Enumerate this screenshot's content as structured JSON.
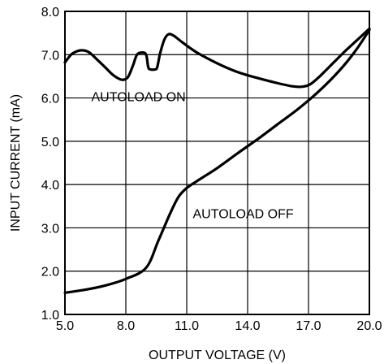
{
  "chart_data": {
    "type": "line",
    "title": "",
    "xlabel": "OUTPUT VOLTAGE (V)",
    "ylabel": "INPUT CURRENT (mA)",
    "xlim": [
      5.0,
      20.0
    ],
    "ylim": [
      1.0,
      8.0
    ],
    "x_ticks": [
      "5.0",
      "8.0",
      "11.0",
      "14.0",
      "17.0",
      "20.0"
    ],
    "y_ticks": [
      "1.0",
      "2.0",
      "3.0",
      "4.0",
      "5.0",
      "6.0",
      "7.0",
      "8.0"
    ],
    "grid": true,
    "series": [
      {
        "name": "AUTOLOAD ON",
        "points": [
          [
            5.0,
            6.82
          ],
          [
            5.3,
            7.0
          ],
          [
            5.6,
            7.08
          ],
          [
            5.9,
            7.1
          ],
          [
            6.2,
            7.05
          ],
          [
            6.6,
            6.88
          ],
          [
            7.0,
            6.7
          ],
          [
            7.4,
            6.52
          ],
          [
            7.8,
            6.42
          ],
          [
            8.1,
            6.48
          ],
          [
            8.35,
            6.75
          ],
          [
            8.55,
            7.0
          ],
          [
            8.8,
            7.05
          ],
          [
            9.0,
            7.0
          ],
          [
            9.1,
            6.72
          ],
          [
            9.2,
            6.66
          ],
          [
            9.45,
            6.66
          ],
          [
            9.55,
            6.72
          ],
          [
            9.7,
            7.05
          ],
          [
            9.9,
            7.35
          ],
          [
            10.1,
            7.47
          ],
          [
            10.35,
            7.44
          ],
          [
            10.8,
            7.28
          ],
          [
            11.5,
            7.05
          ],
          [
            12.5,
            6.8
          ],
          [
            13.5,
            6.6
          ],
          [
            14.5,
            6.46
          ],
          [
            15.5,
            6.34
          ],
          [
            16.2,
            6.27
          ],
          [
            16.7,
            6.26
          ],
          [
            17.1,
            6.32
          ],
          [
            17.6,
            6.52
          ],
          [
            18.2,
            6.8
          ],
          [
            18.8,
            7.08
          ],
          [
            19.4,
            7.34
          ],
          [
            20.0,
            7.6
          ]
        ]
      },
      {
        "name": "AUTOLOAD OFF",
        "points": [
          [
            5.0,
            1.5
          ],
          [
            6.0,
            1.57
          ],
          [
            7.0,
            1.67
          ],
          [
            8.0,
            1.82
          ],
          [
            9.0,
            2.08
          ],
          [
            9.6,
            2.7
          ],
          [
            10.2,
            3.35
          ],
          [
            10.6,
            3.72
          ],
          [
            11.0,
            3.92
          ],
          [
            11.5,
            4.08
          ],
          [
            12.5,
            4.38
          ],
          [
            13.5,
            4.72
          ],
          [
            14.5,
            5.05
          ],
          [
            15.5,
            5.4
          ],
          [
            16.5,
            5.75
          ],
          [
            17.5,
            6.15
          ],
          [
            18.5,
            6.62
          ],
          [
            19.3,
            7.08
          ],
          [
            20.0,
            7.57
          ]
        ]
      }
    ],
    "annotations": [
      {
        "text": "AUTOLOAD ON",
        "x": 6.3,
        "y": 6.0
      },
      {
        "text": "AUTOLOAD OFF",
        "x": 11.3,
        "y": 3.3
      }
    ]
  }
}
